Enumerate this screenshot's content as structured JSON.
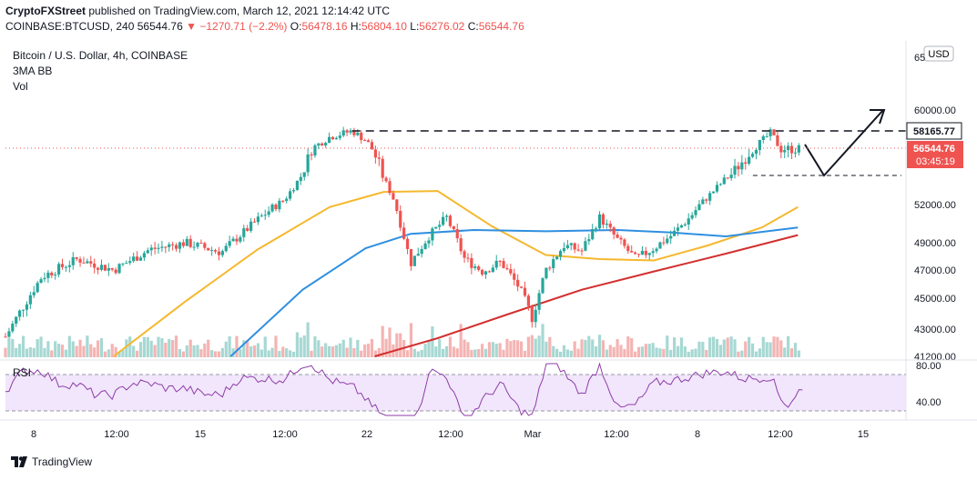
{
  "header": {
    "publisher": "CryptoFXStreet",
    "published_text": "published on TradingView.com, March 12, 2021 12:14:42 UTC",
    "symbol": "COINBASE:BTCUSD, 240",
    "last": "56544.76",
    "change": "−1270.71 (−2.2%)",
    "o_label": "O:",
    "o": "56478.16",
    "h_label": "H:",
    "h": "56804.10",
    "l_label": "L:",
    "l": "56276.02",
    "c_label": "C:",
    "c": "56544.76"
  },
  "legend": {
    "title": "Bitcoin / U.S. Dollar, 4h, COINBASE",
    "indicators": "3MA BB",
    "volume": "Vol"
  },
  "price_axis": {
    "currency": "USD",
    "ticks": [
      "60000.00",
      "52000.00",
      "49000.00",
      "47000.00",
      "45000.00",
      "43000.00",
      "41200.00"
    ],
    "partial_top": "65",
    "level_label": "58165.77",
    "last_price_label": "56544.76",
    "countdown": "03:45:19"
  },
  "rsi": {
    "label": "RSI",
    "ticks": [
      "80.00",
      "40.00"
    ]
  },
  "time_axis": {
    "ticks": [
      "8",
      "12:00",
      "15",
      "12:00",
      "22",
      "12:00",
      "Mar",
      "12:00",
      "8",
      "12:00",
      "15"
    ]
  },
  "footer": {
    "brand": "TradingView"
  },
  "colors": {
    "up": "#26a69a",
    "down": "#ef5350",
    "ma_fast": "#f5b82e",
    "ma_mid": "#2f8fe0",
    "ma_slow": "#d32f2f",
    "rsi_line": "#8e3da8",
    "rsi_band": "#f1e6fb"
  },
  "chart_data": {
    "type": "candlestick",
    "x_range": [
      "2021-02-07",
      "2021-03-18"
    ],
    "y_range": [
      41200,
      65000
    ],
    "resistance_level": 58165.77,
    "support_level": 55000,
    "projection": [
      {
        "t": 0,
        "price": 56900
      },
      {
        "t": 1,
        "price": 55000
      },
      {
        "t": 2,
        "price": 60000
      }
    ],
    "price_path": [
      [
        0,
        42500
      ],
      [
        0.04,
        46500
      ],
      [
        0.08,
        47800
      ],
      [
        0.12,
        47000
      ],
      [
        0.16,
        48500
      ],
      [
        0.2,
        49000
      ],
      [
        0.24,
        48300
      ],
      [
        0.28,
        50800
      ],
      [
        0.31,
        52500
      ],
      [
        0.34,
        56500
      ],
      [
        0.36,
        57600
      ],
      [
        0.385,
        58165
      ],
      [
        0.4,
        57300
      ],
      [
        0.415,
        55600
      ],
      [
        0.43,
        52800
      ],
      [
        0.45,
        47500
      ],
      [
        0.47,
        49500
      ],
      [
        0.49,
        51000
      ],
      [
        0.51,
        47800
      ],
      [
        0.53,
        46900
      ],
      [
        0.55,
        47600
      ],
      [
        0.57,
        45800
      ],
      [
        0.585,
        43700
      ],
      [
        0.6,
        47000
      ],
      [
        0.62,
        48800
      ],
      [
        0.64,
        48400
      ],
      [
        0.66,
        51000
      ],
      [
        0.68,
        49200
      ],
      [
        0.7,
        47800
      ],
      [
        0.72,
        48600
      ],
      [
        0.74,
        49600
      ],
      [
        0.76,
        51000
      ],
      [
        0.78,
        52800
      ],
      [
        0.8,
        54700
      ],
      [
        0.82,
        55900
      ],
      [
        0.84,
        57200
      ],
      [
        0.85,
        58000
      ],
      [
        0.86,
        56545
      ]
    ],
    "ma_fast": [
      [
        0.12,
        41200
      ],
      [
        0.2,
        44800
      ],
      [
        0.28,
        48500
      ],
      [
        0.36,
        51800
      ],
      [
        0.42,
        53300
      ],
      [
        0.48,
        53400
      ],
      [
        0.54,
        50300
      ],
      [
        0.6,
        48100
      ],
      [
        0.66,
        47800
      ],
      [
        0.72,
        47700
      ],
      [
        0.78,
        48800
      ],
      [
        0.84,
        50200
      ],
      [
        0.88,
        51800
      ]
    ],
    "ma_mid": [
      [
        0.25,
        41200
      ],
      [
        0.33,
        45600
      ],
      [
        0.4,
        48600
      ],
      [
        0.45,
        49700
      ],
      [
        0.52,
        50000
      ],
      [
        0.6,
        49900
      ],
      [
        0.68,
        50000
      ],
      [
        0.74,
        49800
      ],
      [
        0.8,
        49500
      ],
      [
        0.88,
        50200
      ]
    ],
    "ma_slow": [
      [
        0.41,
        41200
      ],
      [
        0.48,
        42400
      ],
      [
        0.56,
        44000
      ],
      [
        0.64,
        45600
      ],
      [
        0.72,
        46900
      ],
      [
        0.8,
        48200
      ],
      [
        0.88,
        49600
      ]
    ],
    "rsi_range": [
      20,
      90
    ],
    "rsi_levels": [
      70,
      30
    ]
  }
}
